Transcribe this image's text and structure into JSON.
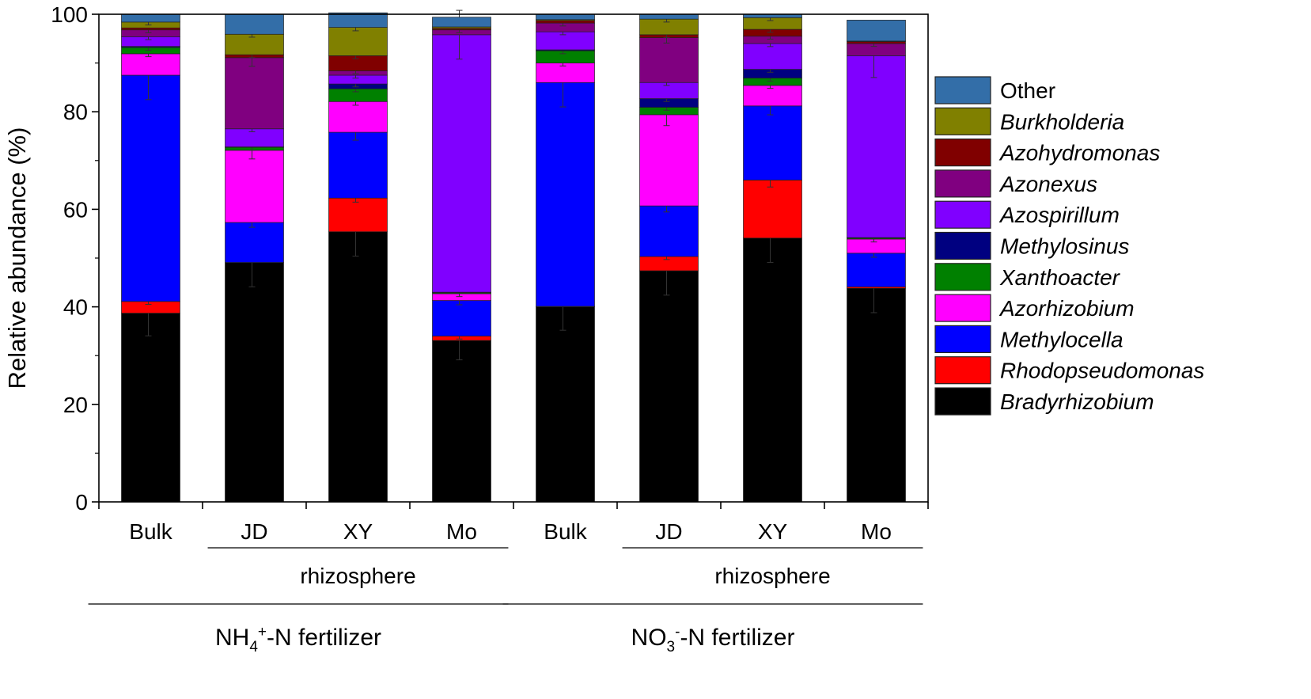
{
  "chart_data": {
    "type": "stacked-bar",
    "ylabel": "Relative abundance (%)",
    "ylim": [
      0,
      100
    ],
    "yticks": [
      0,
      20,
      40,
      60,
      80,
      100
    ],
    "categories": [
      "Bulk",
      "JD",
      "XY",
      "Mo",
      "Bulk",
      "JD",
      "XY",
      "Mo"
    ],
    "groups": [
      {
        "label": "rhizosphere",
        "from": 1,
        "to": 3
      },
      {
        "label": "rhizosphere",
        "from": 5,
        "to": 7
      }
    ],
    "fertilizers": [
      {
        "main": "NH",
        "sub": "4",
        "sup": "+",
        "rest": "-N fertilizer",
        "from": 0,
        "to": 3
      },
      {
        "main": "NO",
        "sub": "3",
        "sup": "-",
        "rest": "-N fertilizer",
        "from": 4,
        "to": 7
      }
    ],
    "series": [
      {
        "name": "Bradyrhizobium",
        "color": "#000000",
        "italic": true,
        "values": [
          38.7,
          49.1,
          55.4,
          33.1,
          40.0,
          47.4,
          54.1,
          43.8
        ]
      },
      {
        "name": "Rhodopseudomonas",
        "color": "#ff0000",
        "italic": true,
        "values": [
          2.4,
          0.0,
          6.9,
          0.9,
          0.1,
          2.9,
          11.9,
          0.3
        ]
      },
      {
        "name": "Methylocella",
        "color": "#0000ff",
        "italic": true,
        "values": [
          46.4,
          8.2,
          13.5,
          7.3,
          45.9,
          10.4,
          15.2,
          6.9
        ]
      },
      {
        "name": "Azorhizobium",
        "color": "#ff00ff",
        "italic": true,
        "values": [
          4.4,
          14.8,
          6.3,
          1.4,
          4.0,
          18.7,
          4.2,
          2.9
        ]
      },
      {
        "name": "Xanthoacter",
        "color": "#008000",
        "italic": true,
        "values": [
          1.3,
          0.6,
          2.6,
          0.2,
          2.5,
          1.5,
          1.5,
          0.2
        ]
      },
      {
        "name": "Methylosinus",
        "color": "#000080",
        "italic": true,
        "values": [
          0.2,
          0.1,
          1.0,
          0.1,
          0.2,
          1.8,
          1.8,
          0.1
        ]
      },
      {
        "name": "Azospirillum",
        "color": "#8000ff",
        "italic": true,
        "values": [
          2.0,
          3.7,
          1.8,
          52.8,
          3.7,
          3.3,
          5.3,
          37.3
        ]
      },
      {
        "name": "Azonexus",
        "color": "#800080",
        "italic": true,
        "values": [
          1.4,
          14.6,
          0.9,
          1.0,
          1.8,
          9.2,
          1.5,
          2.5
        ]
      },
      {
        "name": "Azohydromonas",
        "color": "#800000",
        "italic": true,
        "values": [
          0.4,
          0.6,
          3.1,
          0.3,
          0.5,
          0.6,
          1.4,
          0.4
        ]
      },
      {
        "name": "Burkholderia",
        "color": "#808000",
        "italic": true,
        "values": [
          1.2,
          4.2,
          5.8,
          0.3,
          0.2,
          3.2,
          2.4,
          0.1
        ]
      },
      {
        "name": "Other",
        "color": "#336ea8",
        "italic": false,
        "values": [
          1.6,
          4.1,
          3.0,
          2.0,
          1.1,
          1.0,
          0.7,
          4.3
        ]
      }
    ]
  }
}
